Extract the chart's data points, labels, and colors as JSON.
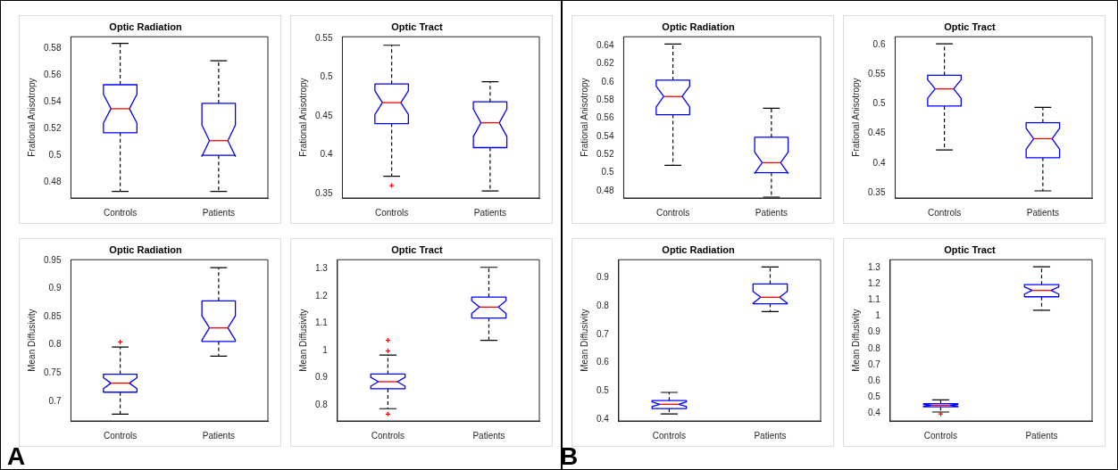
{
  "chart_data": [
    {
      "type": "box",
      "title": "Optic Radiation",
      "ylabel": "Frational Anisotropy",
      "categories": [
        "Controls",
        "Patients"
      ],
      "color": "#0000ff",
      "ylim": [
        0.468,
        0.589
      ],
      "yticks": [
        0.48,
        0.5,
        0.52,
        0.54,
        0.56,
        0.58
      ],
      "boxes": [
        {
          "low": 0.473,
          "q1": 0.517,
          "median": 0.535,
          "q3": 0.553,
          "high": 0.584
        },
        {
          "low": 0.473,
          "q1": 0.5,
          "median": 0.511,
          "q3": 0.539,
          "high": 0.571
        }
      ]
    },
    {
      "type": "box",
      "title": "Optic Tract",
      "ylabel": "Frational Anisotropy",
      "categories": [
        "Controls",
        "Patients"
      ],
      "color": "#0000ff",
      "ylim": [
        0.344,
        0.552
      ],
      "yticks": [
        0.35,
        0.4,
        0.45,
        0.5,
        0.55
      ],
      "boxes": [
        {
          "low": 0.372,
          "q1": 0.44,
          "median": 0.467,
          "q3": 0.491,
          "high": 0.541,
          "outliers": [
            0.36
          ]
        },
        {
          "low": 0.353,
          "q1": 0.409,
          "median": 0.441,
          "q3": 0.468,
          "high": 0.494
        }
      ]
    },
    {
      "type": "box",
      "title": "Optic Radiation",
      "ylabel": "Mean Diffusivity",
      "categories": [
        "Controls",
        "Patients"
      ],
      "color": "#0000ff",
      "ylim": [
        0.665,
        0.951
      ],
      "yticks": [
        0.7,
        0.75,
        0.8,
        0.85,
        0.9,
        0.95
      ],
      "annotations": [
        "A"
      ],
      "boxes": [
        {
          "low": 0.677,
          "q1": 0.716,
          "median": 0.732,
          "q3": 0.748,
          "high": 0.796,
          "outliers": [
            0.805
          ]
        },
        {
          "low": 0.78,
          "q1": 0.806,
          "median": 0.83,
          "q3": 0.878,
          "high": 0.937
        }
      ]
    },
    {
      "type": "box",
      "title": "Optic Tract",
      "ylabel": "Mean Diffusivity",
      "categories": [
        "Controls",
        "Patients"
      ],
      "color": "#0000ff",
      "ylim": [
        0.741,
        1.333
      ],
      "yticks": [
        0.8,
        0.9,
        1,
        1.1,
        1.2,
        1.3
      ],
      "boxes": [
        {
          "low": 0.786,
          "q1": 0.859,
          "median": 0.885,
          "q3": 0.913,
          "high": 0.983,
          "outliers": [
            0.766,
            0.998,
            1.037
          ]
        },
        {
          "low": 1.037,
          "q1": 1.119,
          "median": 1.159,
          "q3": 1.196,
          "high": 1.305
        }
      ]
    },
    {
      "type": "box",
      "title": "Optic Radiation",
      "ylabel": "Frational Anisotropy",
      "categories": [
        "Controls",
        "Patients"
      ],
      "color": "#0000ff",
      "ylim": [
        0.472,
        0.65
      ],
      "yticks": [
        0.48,
        0.5,
        0.52,
        0.54,
        0.56,
        0.58,
        0.6,
        0.62,
        0.64
      ],
      "boxes": [
        {
          "low": 0.508,
          "q1": 0.564,
          "median": 0.584,
          "q3": 0.602,
          "high": 0.642
        },
        {
          "low": 0.473,
          "q1": 0.5,
          "median": 0.511,
          "q3": 0.539,
          "high": 0.571
        }
      ]
    },
    {
      "type": "box",
      "title": "Optic Tract",
      "ylabel": "Frational Anisotropy",
      "categories": [
        "Controls",
        "Patients"
      ],
      "color": "#0000ff",
      "ylim": [
        0.341,
        0.613
      ],
      "yticks": [
        0.35,
        0.4,
        0.45,
        0.5,
        0.55,
        0.6
      ],
      "boxes": [
        {
          "low": 0.422,
          "q1": 0.496,
          "median": 0.525,
          "q3": 0.548,
          "high": 0.601
        },
        {
          "low": 0.353,
          "q1": 0.409,
          "median": 0.441,
          "q3": 0.468,
          "high": 0.494
        }
      ]
    },
    {
      "type": "box",
      "title": "Optic Radiation",
      "ylabel": "Mean Diffusivity",
      "categories": [
        "Controls",
        "Patients"
      ],
      "color": "#0000ff",
      "ylim": [
        0.393,
        0.964
      ],
      "yticks": [
        0.4,
        0.5,
        0.6,
        0.7,
        0.8,
        0.9
      ],
      "annotations": [
        "B"
      ],
      "boxes": [
        {
          "low": 0.418,
          "q1": 0.437,
          "median": 0.452,
          "q3": 0.465,
          "high": 0.494
        },
        {
          "low": 0.78,
          "q1": 0.808,
          "median": 0.831,
          "q3": 0.878,
          "high": 0.938
        }
      ]
    },
    {
      "type": "box",
      "title": "Optic Tract",
      "ylabel": "Mean Diffusivity",
      "categories": [
        "Controls",
        "Patients"
      ],
      "color": "#0000ff",
      "ylim": [
        0.353,
        1.349
      ],
      "yticks": [
        0.4,
        0.5,
        0.6,
        0.7,
        0.8,
        0.9,
        1,
        1.1,
        1.2,
        1.3
      ],
      "boxes": [
        {
          "low": 0.408,
          "q1": 0.44,
          "median": 0.45,
          "q3": 0.46,
          "high": 0.483,
          "outliers": [
            0.396
          ]
        },
        {
          "low": 1.037,
          "q1": 1.12,
          "median": 1.159,
          "q3": 1.195,
          "high": 1.305
        }
      ]
    }
  ]
}
